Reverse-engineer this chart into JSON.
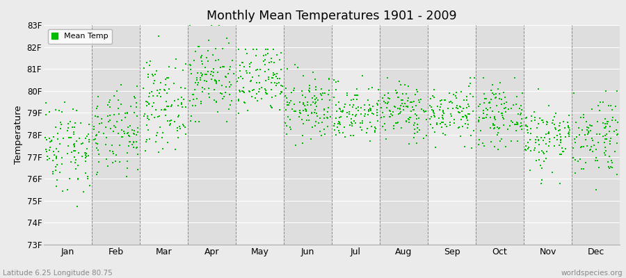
{
  "title": "Monthly Mean Temperatures 1901 - 2009",
  "ylabel": "Temperature",
  "xlabel_bottom_left": "Latitude 6.25 Longitude 80.75",
  "xlabel_bottom_right": "worldspecies.org",
  "ytick_labels": [
    "73F",
    "74F",
    "75F",
    "76F",
    "77F",
    "78F",
    "79F",
    "80F",
    "81F",
    "82F",
    "83F"
  ],
  "ytick_values": [
    73,
    74,
    75,
    76,
    77,
    78,
    79,
    80,
    81,
    82,
    83
  ],
  "months": [
    "Jan",
    "Feb",
    "Mar",
    "Apr",
    "May",
    "Jun",
    "Jul",
    "Aug",
    "Sep",
    "Oct",
    "Nov",
    "Dec"
  ],
  "dot_color": "#00bb00",
  "bg_color_light": "#ebebeb",
  "bg_color_dark": "#dedede",
  "legend_label": "Mean Temp",
  "ylim_min": 73,
  "ylim_max": 83,
  "n_years": 109,
  "seed": 42,
  "monthly_mean": [
    77.5,
    78.0,
    79.4,
    80.6,
    80.4,
    79.2,
    79.0,
    79.1,
    79.0,
    78.9,
    77.9,
    78.0
  ],
  "monthly_std": [
    1.05,
    0.95,
    1.0,
    0.95,
    0.85,
    0.75,
    0.65,
    0.65,
    0.65,
    0.65,
    0.8,
    0.95
  ],
  "monthly_min": [
    73.9,
    75.5,
    77.2,
    78.6,
    78.6,
    77.4,
    77.5,
    77.5,
    77.4,
    77.3,
    75.8,
    75.5
  ],
  "monthly_max": [
    80.1,
    81.2,
    82.6,
    83.0,
    81.9,
    81.2,
    80.9,
    80.7,
    80.6,
    80.6,
    80.1,
    80.0
  ]
}
